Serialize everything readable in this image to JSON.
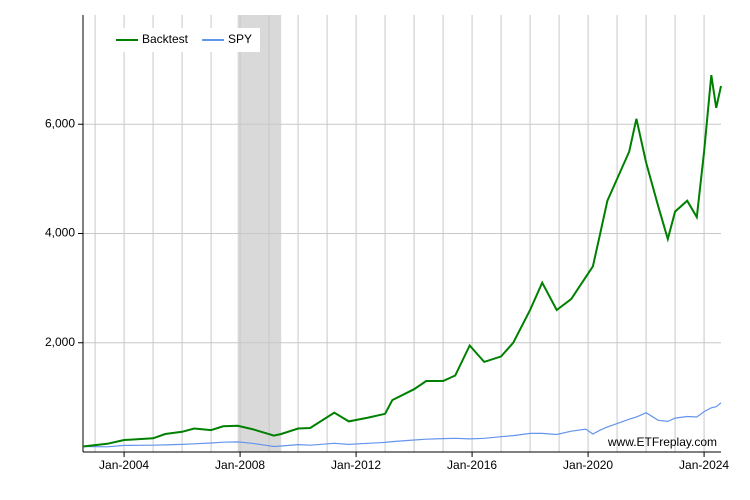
{
  "chart_data": {
    "type": "line",
    "x": [
      "2002-08",
      "2003-06",
      "2004-01",
      "2005-01",
      "2005-06",
      "2006-01",
      "2006-06",
      "2007-01",
      "2007-06",
      "2007-12",
      "2008-06",
      "2009-03",
      "2009-06",
      "2010-01",
      "2010-06",
      "2011-04",
      "2011-10",
      "2012-06",
      "2013-01",
      "2013-04",
      "2014-01",
      "2014-06",
      "2015-01",
      "2015-06",
      "2015-12",
      "2016-06",
      "2017-01",
      "2017-06",
      "2018-01",
      "2018-06",
      "2018-12",
      "2019-06",
      "2019-12",
      "2020-03",
      "2020-06",
      "2020-09",
      "2021-01",
      "2021-06",
      "2021-09",
      "2022-01",
      "2022-06",
      "2022-10",
      "2023-01",
      "2023-06",
      "2023-10",
      "2024-01",
      "2024-04",
      "2024-06",
      "2024-08"
    ],
    "series": [
      {
        "name": "Backtest",
        "color": "#008000",
        "values": [
          100,
          150,
          220,
          250,
          330,
          370,
          430,
          400,
          470,
          480,
          420,
          300,
          330,
          430,
          440,
          720,
          560,
          630,
          700,
          950,
          1150,
          1300,
          1300,
          1400,
          1950,
          1650,
          1750,
          2000,
          2600,
          3100,
          2600,
          2800,
          3200,
          3400,
          4000,
          4600,
          5000,
          5500,
          6100,
          5300,
          4500,
          3900,
          4400,
          4600,
          4300,
          5500,
          6900,
          6300,
          6700
        ]
      },
      {
        "name": "SPY",
        "color": "#6495ed",
        "values": [
          100,
          95,
          120,
          125,
          130,
          140,
          150,
          165,
          180,
          185,
          160,
          100,
          110,
          135,
          125,
          160,
          140,
          160,
          175,
          190,
          220,
          235,
          245,
          250,
          240,
          250,
          280,
          300,
          340,
          340,
          320,
          380,
          420,
          330,
          400,
          460,
          520,
          600,
          640,
          720,
          580,
          560,
          620,
          650,
          640,
          740,
          810,
          830,
          900
        ]
      }
    ],
    "xlim": [
      "2002-08",
      "2024-08"
    ],
    "xticks": [
      {
        "value": "2004-01",
        "label": "Jan-2004"
      },
      {
        "value": "2008-01",
        "label": "Jan-2008"
      },
      {
        "value": "2012-01",
        "label": "Jan-2012"
      },
      {
        "value": "2016-01",
        "label": "Jan-2016"
      },
      {
        "value": "2020-01",
        "label": "Jan-2020"
      },
      {
        "value": "2024-01",
        "label": "Jan-2024"
      }
    ],
    "x_minor_ticks": [
      "2003-01",
      "2005-01",
      "2006-01",
      "2007-01",
      "2009-01",
      "2010-01",
      "2011-01",
      "2013-01",
      "2014-01",
      "2015-01",
      "2017-01",
      "2018-01",
      "2019-01",
      "2021-01",
      "2022-01",
      "2023-01"
    ],
    "ylim": [
      0,
      8000
    ],
    "yticks": [
      {
        "value": 2000,
        "label": "2,000"
      },
      {
        "value": 4000,
        "label": "4,000"
      },
      {
        "value": 6000,
        "label": "6,000"
      }
    ],
    "shaded_regions": [
      {
        "start": "2007-12",
        "end": "2009-06"
      }
    ],
    "annotation": "www.ETFreplay.com",
    "grid": true,
    "legend": "top-left"
  }
}
